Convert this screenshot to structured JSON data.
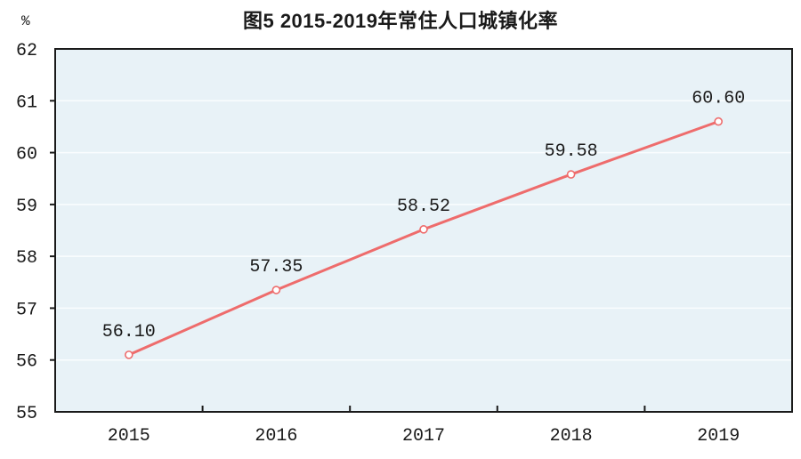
{
  "figure": {
    "title": "图5  2015-2019年常住人口城镇化率",
    "y_axis_unit": "%"
  },
  "chart_data": {
    "type": "line",
    "title": "图5  2015-2019年常住人口城镇化率",
    "y_axis_unit": "%",
    "categories": [
      "2015",
      "2016",
      "2017",
      "2018",
      "2019"
    ],
    "values": [
      56.1,
      57.35,
      58.52,
      59.58,
      60.6
    ],
    "value_labels": [
      "56.10",
      "57.35",
      "58.52",
      "59.58",
      "60.60"
    ],
    "ylim": [
      55,
      62
    ],
    "y_ticks": [
      55,
      56,
      57,
      58,
      59,
      60,
      61,
      62
    ],
    "grid": true,
    "legend": false,
    "colors": {
      "line": "#ee6c6c",
      "marker_fill": "#ffffff",
      "plot_bg": "#e8f2f7",
      "gridline": "#fafdfe",
      "axis": "#1a1a1a",
      "text": "#1a1a1a"
    }
  }
}
